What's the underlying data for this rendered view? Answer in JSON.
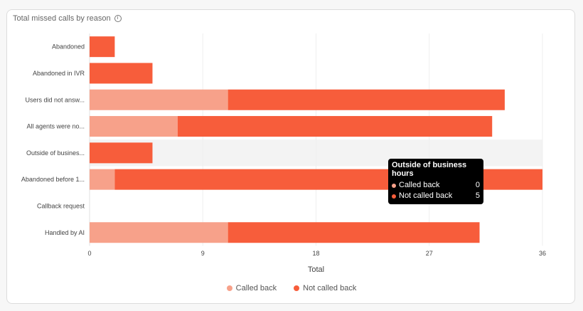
{
  "title": "Total missed calls by reason",
  "info_icon": "info-icon",
  "chart_data": {
    "type": "bar",
    "orientation": "horizontal",
    "stacked": true,
    "categories": [
      "Abandoned",
      "Abandoned in IVR",
      "Users did not answ...",
      "All agents were no...",
      "Outside of busines...",
      "Abandoned before 1...",
      "Callback request",
      "Handled by AI"
    ],
    "series": [
      {
        "name": "Called back",
        "color": "#f7a18a",
        "values": [
          0,
          0,
          11,
          7,
          0,
          2,
          0,
          11
        ]
      },
      {
        "name": "Not called back",
        "color": "#f75d3b",
        "values": [
          2,
          5,
          22,
          25,
          5,
          34,
          0,
          20
        ]
      }
    ],
    "xlabel": "Total",
    "xlim": [
      0,
      36
    ],
    "xticks": [
      "0",
      "9",
      "18",
      "27",
      "36"
    ],
    "grid": true,
    "legend": "bottom",
    "highlighted_category_index": 4
  },
  "tooltip": {
    "title": "Outside of business hours",
    "rows": [
      {
        "label": "Called back",
        "value": "0"
      },
      {
        "label": "Not called back",
        "value": "5"
      }
    ]
  }
}
